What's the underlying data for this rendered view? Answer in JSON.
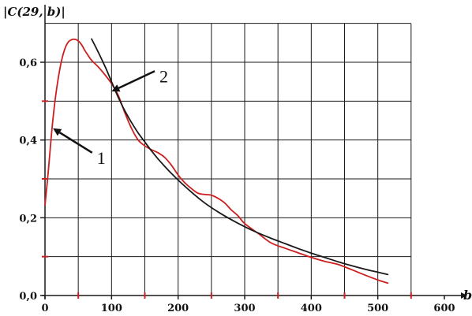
{
  "chart_data": {
    "type": "line",
    "ylabel": "|C(29, b)|",
    "xlabel": "b",
    "xlim": [
      0,
      600
    ],
    "ylim": [
      0,
      0.7
    ],
    "x_ticks": [
      0,
      100,
      200,
      300,
      400,
      500,
      600
    ],
    "x_tick_labels": [
      "0",
      "100",
      "200",
      "300",
      "400",
      "500",
      "600"
    ],
    "y_ticks": [
      0,
      0.2,
      0.4,
      0.6
    ],
    "y_tick_labels": [
      "0,0",
      "0,2",
      "0,4",
      "0,6"
    ],
    "grid": true,
    "series": [
      {
        "name": "1",
        "color": "#cc1f1f",
        "x": [
          0,
          5,
          10,
          15,
          20,
          25,
          30,
          35,
          40,
          45,
          50,
          55,
          60,
          65,
          70,
          80,
          90,
          100,
          110,
          120,
          130,
          140,
          150,
          160,
          170,
          180,
          190,
          200,
          210,
          220,
          230,
          240,
          250,
          260,
          270,
          280,
          290,
          300,
          320,
          340,
          360,
          380,
          400,
          420,
          440,
          460,
          480,
          500,
          515
        ],
        "y": [
          0.232,
          0.32,
          0.42,
          0.5,
          0.56,
          0.605,
          0.635,
          0.652,
          0.658,
          0.659,
          0.655,
          0.645,
          0.63,
          0.617,
          0.605,
          0.588,
          0.568,
          0.545,
          0.515,
          0.47,
          0.43,
          0.4,
          0.385,
          0.375,
          0.367,
          0.355,
          0.335,
          0.31,
          0.29,
          0.275,
          0.263,
          0.26,
          0.258,
          0.25,
          0.238,
          0.22,
          0.205,
          0.185,
          0.16,
          0.135,
          0.122,
          0.11,
          0.098,
          0.088,
          0.08,
          0.067,
          0.053,
          0.04,
          0.032
        ]
      },
      {
        "name": "2",
        "color": "#1a1a1a",
        "x": [
          70,
          80,
          90,
          100,
          110,
          120,
          130,
          140,
          150,
          160,
          170,
          180,
          190,
          200,
          220,
          240,
          260,
          280,
          300,
          320,
          340,
          360,
          380,
          400,
          420,
          440,
          460,
          480,
          500,
          515
        ],
        "y": [
          0.66,
          0.626,
          0.59,
          0.55,
          0.51,
          0.475,
          0.445,
          0.418,
          0.395,
          0.372,
          0.351,
          0.332,
          0.314,
          0.297,
          0.266,
          0.238,
          0.215,
          0.195,
          0.177,
          0.161,
          0.147,
          0.134,
          0.121,
          0.109,
          0.098,
          0.087,
          0.077,
          0.068,
          0.06,
          0.054
        ]
      }
    ],
    "annotations": [
      {
        "text": "1",
        "arrow_to": [
          12,
          0.43
        ],
        "text_at": [
          78,
          0.355
        ]
      },
      {
        "text": "2",
        "arrow_to": [
          100,
          0.525
        ],
        "text_at": [
          172,
          0.565
        ]
      }
    ],
    "colors": {
      "grid": "#1a1a1a",
      "axis": "#1a1a1a",
      "minor_tick": "#cc1f1f"
    }
  }
}
